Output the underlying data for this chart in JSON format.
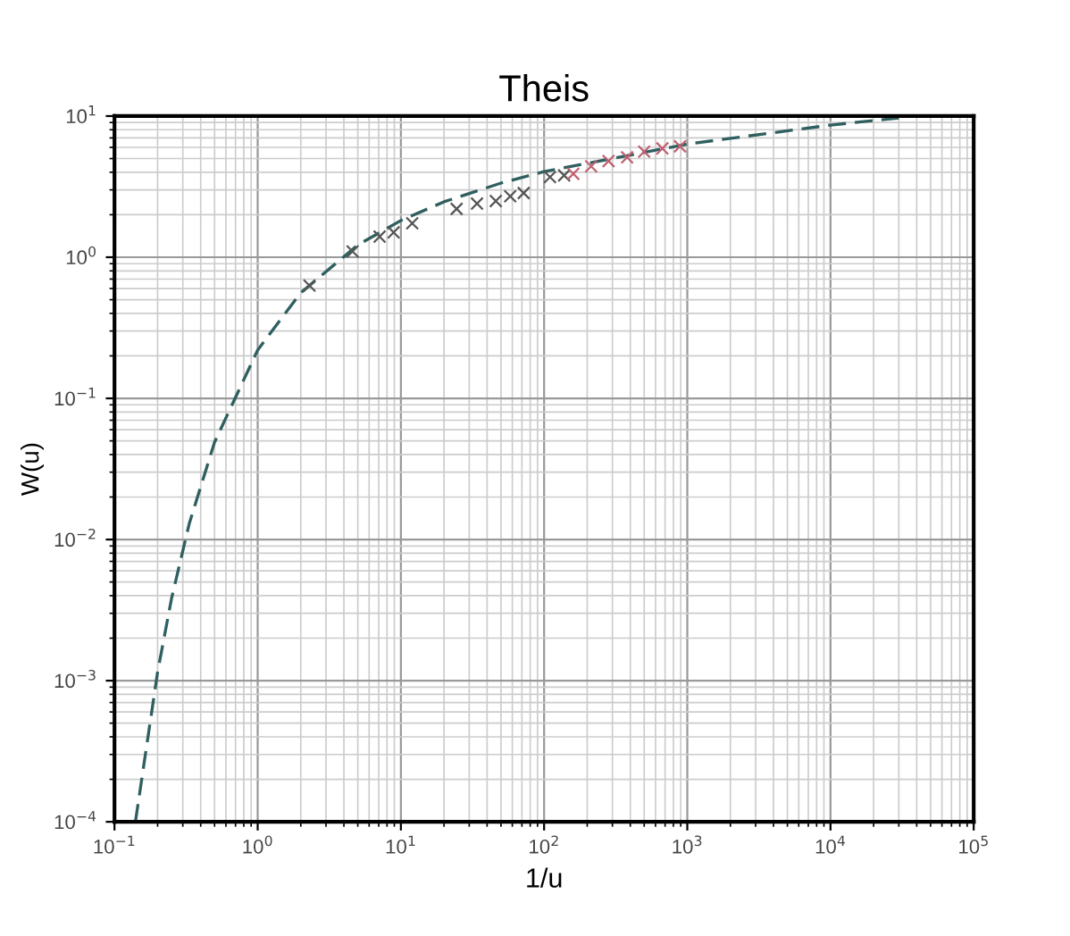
{
  "chart_data": {
    "type": "line",
    "title": "Theis",
    "xlabel": "1/u",
    "ylabel": "W(u)",
    "log": "xy",
    "grid": true,
    "xlim": [
      0.1,
      100000
    ],
    "ylim": [
      0.0001,
      10
    ],
    "xticks": [
      {
        "value": 0.1,
        "label": "10$^{−1}$"
      },
      {
        "value": 1,
        "label": "10$^{0}$"
      },
      {
        "value": 10,
        "label": "10$^{1}$"
      },
      {
        "value": 100,
        "label": "10$^{2}$"
      },
      {
        "value": 1000,
        "label": "10$^{3}$"
      },
      {
        "value": 10000,
        "label": "10$^{4}$"
      },
      {
        "value": 100000,
        "label": "10$^{5}$"
      }
    ],
    "yticks": [
      {
        "value": 0.0001,
        "label": "10$^{−4}$"
      },
      {
        "value": 0.001,
        "label": "10$^{−3}$"
      },
      {
        "value": 0.01,
        "label": "10$^{−2}$"
      },
      {
        "value": 0.1,
        "label": "10$^{−1}$"
      },
      {
        "value": 1,
        "label": "10$^{0}$"
      },
      {
        "value": 10,
        "label": "10$^{1}$"
      }
    ],
    "series": [
      {
        "color": "#2f5f5f",
        "line_style": "dashed",
        "marker": "none",
        "x": [
          0.14,
          0.2,
          0.25,
          0.333,
          0.5,
          1,
          2,
          5,
          10,
          20,
          50,
          100,
          1000,
          10000,
          30000
        ],
        "values": [
          0.0001,
          0.00115,
          0.0038,
          0.013,
          0.049,
          0.22,
          0.56,
          1.22,
          1.82,
          2.47,
          3.35,
          4.04,
          6.33,
          8.63,
          9.7
        ]
      },
      {
        "type": "scatter",
        "marker": "cross",
        "colors": [
          "#555555",
          "#555555",
          "#555555",
          "#555555",
          "#555555",
          "#555555",
          "#555555",
          "#555555",
          "#555555",
          "#555555",
          "#555555",
          "#555555",
          "#c06070",
          "#c06070",
          "#c06070",
          "#c06070",
          "#c06070",
          "#c06070",
          "#c06070"
        ],
        "x": [
          2.3,
          4.6,
          7.1,
          8.9,
          12,
          24.5,
          34,
          46,
          58,
          72,
          110,
          138,
          160,
          213,
          282,
          380,
          500,
          670,
          890
        ],
        "values": [
          0.63,
          1.1,
          1.4,
          1.5,
          1.74,
          2.2,
          2.4,
          2.5,
          2.7,
          2.85,
          3.7,
          3.8,
          3.9,
          4.4,
          4.8,
          5.1,
          5.6,
          5.9,
          6.1
        ]
      }
    ]
  }
}
